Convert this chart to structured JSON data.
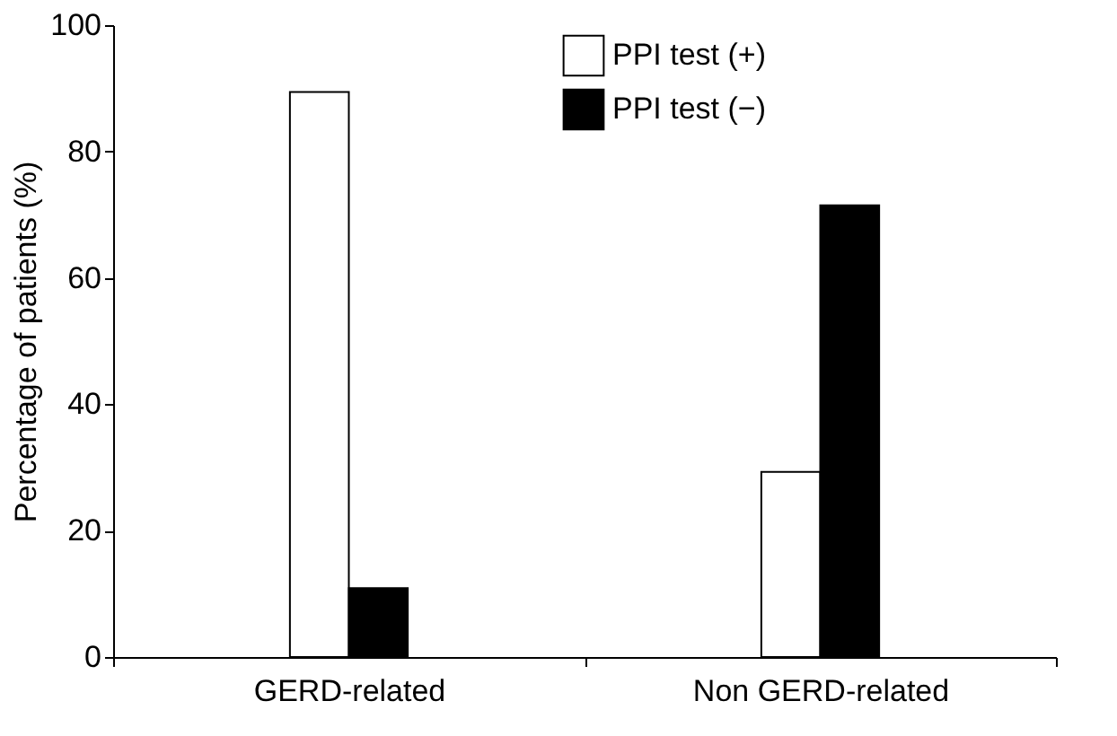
{
  "chart_data": {
    "type": "bar",
    "ylabel": "Percentage of patients (%)",
    "categories": [
      "GERD-related",
      "Non GERD-related"
    ],
    "series": [
      {
        "name": "PPI test (+)",
        "color": "#ffffff",
        "values": [
          89.4,
          29.3
        ]
      },
      {
        "name": "PPI test (−)",
        "color": "#000000",
        "values": [
          10.9,
          71.5
        ]
      }
    ],
    "ylim": [
      0,
      100
    ],
    "yticks": [
      0,
      20,
      40,
      60,
      80,
      100
    ],
    "grid": false,
    "legend": "top right"
  }
}
